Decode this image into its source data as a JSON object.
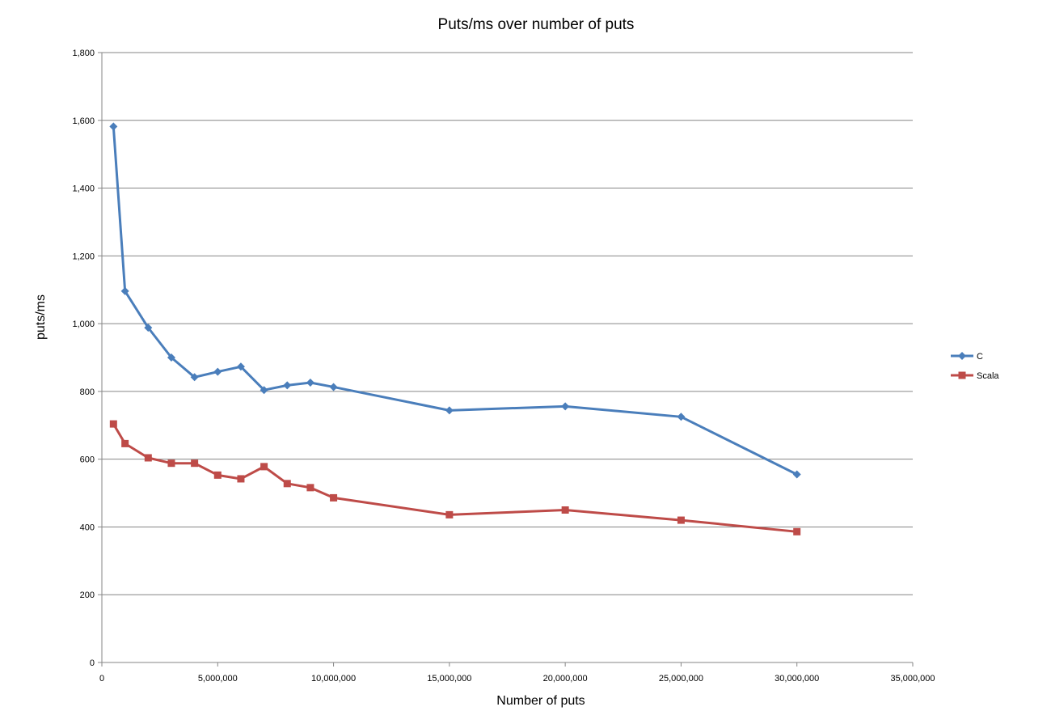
{
  "chart_data": {
    "type": "line",
    "title": "Puts/ms over number of puts",
    "xlabel": "Number of puts",
    "ylabel": "puts/ms",
    "xlim": [
      0,
      35000000
    ],
    "ylim": [
      0,
      1800
    ],
    "xticks": [
      0,
      5000000,
      10000000,
      15000000,
      20000000,
      25000000,
      30000000,
      35000000
    ],
    "yticks": [
      0,
      200,
      400,
      600,
      800,
      1000,
      1200,
      1400,
      1600,
      1800
    ],
    "xtick_labels": [
      "0",
      "5,000,000",
      "10,000,000",
      "15,000,000",
      "20,000,000",
      "25,000,000",
      "30,000,000",
      "35,000,000"
    ],
    "ytick_labels": [
      "0",
      "200",
      "400",
      "600",
      "800",
      "1,000",
      "1,200",
      "1,400",
      "1,600",
      "1,800"
    ],
    "grid": "horizontal",
    "legend_position": "right",
    "x": [
      500000,
      1000000,
      2000000,
      3000000,
      4000000,
      5000000,
      6000000,
      7000000,
      8000000,
      9000000,
      10000000,
      15000000,
      20000000,
      25000000,
      30000000
    ],
    "series": [
      {
        "name": "C",
        "color": "#4a7ebb",
        "marker": "diamond",
        "values": [
          1582,
          1096,
          988,
          900,
          842,
          858,
          873,
          804,
          818,
          826,
          813,
          744,
          756,
          725,
          555
        ]
      },
      {
        "name": "Scala",
        "color": "#be4b48",
        "marker": "square",
        "values": [
          704,
          646,
          604,
          588,
          588,
          553,
          542,
          578,
          528,
          516,
          486,
          436,
          450,
          420,
          386
        ]
      }
    ]
  }
}
